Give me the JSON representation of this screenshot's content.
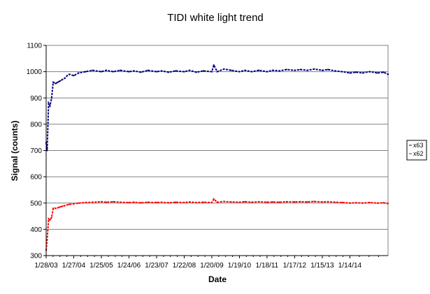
{
  "chart_data": {
    "type": "line",
    "title": "TIDI white light trend",
    "xlabel": "Date",
    "ylabel": "Signal (counts)",
    "ylim": [
      300,
      1100
    ],
    "yticks": [
      300,
      400,
      500,
      600,
      700,
      800,
      900,
      1000,
      1100
    ],
    "xlim": [
      "2003-01-28",
      "2015-06-01"
    ],
    "xtick_labels": [
      "1/28/03",
      "1/27/04",
      "1/25/05",
      "1/24/06",
      "1/23/07",
      "1/22/08",
      "1/20/09",
      "1/19/10",
      "1/18/11",
      "1/17/12",
      "1/15/13",
      "1/14/14"
    ],
    "xtick_dates": [
      "2003-01-28",
      "2004-01-27",
      "2005-01-25",
      "2006-01-24",
      "2007-01-23",
      "2008-01-22",
      "2009-01-20",
      "2010-01-19",
      "2011-01-18",
      "2012-01-17",
      "2013-01-15",
      "2014-01-14"
    ],
    "grid": "horizontal",
    "legend_position": "right",
    "series": [
      {
        "name": "x63",
        "color": "#000080",
        "x": [
          "2003-01-28",
          "2003-02-10",
          "2003-03-01",
          "2003-03-20",
          "2003-04-10",
          "2003-05-01",
          "2003-06-01",
          "2003-07-01",
          "2003-08-01",
          "2003-09-01",
          "2003-10-01",
          "2003-11-01",
          "2003-12-01",
          "2004-01-27",
          "2004-04-01",
          "2004-07-01",
          "2004-10-01",
          "2005-01-25",
          "2005-04-01",
          "2005-07-01",
          "2005-10-01",
          "2006-01-24",
          "2006-04-01",
          "2006-07-01",
          "2006-10-01",
          "2007-01-23",
          "2007-04-01",
          "2007-07-01",
          "2007-10-01",
          "2008-01-22",
          "2008-04-01",
          "2008-07-01",
          "2008-10-01",
          "2009-01-20",
          "2009-02-15",
          "2009-04-01",
          "2009-07-01",
          "2009-10-01",
          "2010-01-19",
          "2010-04-01",
          "2010-07-01",
          "2010-10-01",
          "2011-01-18",
          "2011-04-01",
          "2011-07-01",
          "2011-10-01",
          "2012-01-17",
          "2012-04-01",
          "2012-07-01",
          "2012-10-01",
          "2013-01-15",
          "2013-04-01",
          "2013-07-01",
          "2013-10-01",
          "2014-01-14",
          "2014-04-01",
          "2014-07-01",
          "2014-10-01",
          "2015-01-15",
          "2015-04-01",
          "2015-06-01"
        ],
        "values": [
          730,
          700,
          880,
          870,
          900,
          960,
          955,
          960,
          965,
          970,
          975,
          985,
          990,
          985,
          995,
          1000,
          1005,
          1000,
          1005,
          1000,
          1005,
          1000,
          1003,
          998,
          1005,
          1000,
          1003,
          998,
          1003,
          1000,
          1005,
          998,
          1003,
          1000,
          1025,
          1000,
          1010,
          1005,
          1000,
          1005,
          1000,
          1005,
          1000,
          1005,
          1003,
          1008,
          1005,
          1008,
          1005,
          1010,
          1005,
          1008,
          1003,
          1000,
          995,
          998,
          995,
          1000,
          995,
          998,
          990
        ]
      },
      {
        "name": "x62",
        "color": "#ff0000",
        "x": [
          "2003-01-28",
          "2003-02-10",
          "2003-03-01",
          "2003-03-20",
          "2003-04-10",
          "2003-05-01",
          "2003-06-01",
          "2003-07-01",
          "2003-08-01",
          "2003-09-01",
          "2003-10-01",
          "2003-11-01",
          "2003-12-01",
          "2004-01-27",
          "2004-04-01",
          "2004-07-01",
          "2004-10-01",
          "2005-01-25",
          "2005-04-01",
          "2005-07-01",
          "2005-10-01",
          "2006-01-24",
          "2006-04-01",
          "2006-07-01",
          "2006-10-01",
          "2007-01-23",
          "2007-04-01",
          "2007-07-01",
          "2007-10-01",
          "2008-01-22",
          "2008-04-01",
          "2008-07-01",
          "2008-10-01",
          "2009-01-20",
          "2009-02-15",
          "2009-04-01",
          "2009-07-01",
          "2009-10-01",
          "2010-01-19",
          "2010-04-01",
          "2010-07-01",
          "2010-10-01",
          "2011-01-18",
          "2011-04-01",
          "2011-07-01",
          "2011-10-01",
          "2012-01-17",
          "2012-04-01",
          "2012-07-01",
          "2012-10-01",
          "2013-01-15",
          "2013-04-01",
          "2013-07-01",
          "2013-10-01",
          "2014-01-14",
          "2014-04-01",
          "2014-07-01",
          "2014-10-01",
          "2015-01-15",
          "2015-04-01",
          "2015-06-01"
        ],
        "values": [
          320,
          360,
          440,
          435,
          445,
          480,
          480,
          482,
          485,
          488,
          490,
          493,
          495,
          497,
          500,
          502,
          503,
          505,
          503,
          505,
          503,
          502,
          503,
          501,
          503,
          502,
          503,
          501,
          503,
          502,
          504,
          502,
          503,
          502,
          515,
          503,
          506,
          504,
          503,
          505,
          503,
          505,
          503,
          504,
          503,
          505,
          504,
          505,
          504,
          506,
          504,
          505,
          503,
          502,
          500,
          501,
          500,
          502,
          500,
          501,
          498
        ]
      }
    ]
  }
}
